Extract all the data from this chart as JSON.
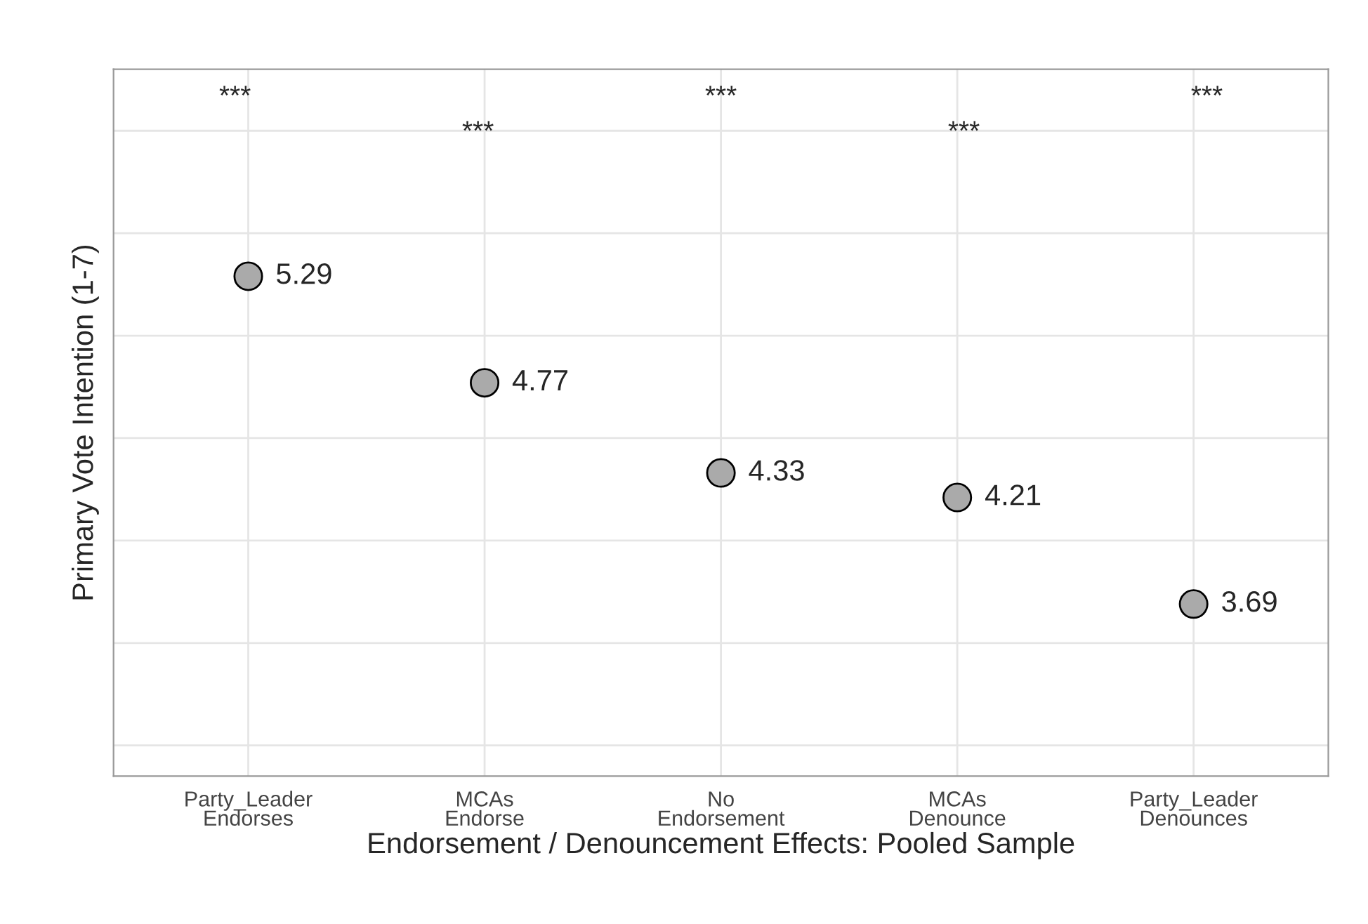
{
  "chart_data": {
    "type": "scatter",
    "xlabel": "Endorsement / Denouncement Effects: Pooled Sample",
    "ylabel": "Primary Vote Intention (1-7)",
    "categories": [
      "Party_Leader\nEndorses",
      "MCAs\nEndorse",
      "No\nEndorsement",
      "MCAs\nDenounce",
      "Party_Leader\nDenounces"
    ],
    "ylim": [
      2.85,
      6.3
    ],
    "yticks": [
      {
        "value": 3,
        "label": null
      },
      {
        "value": 3.5,
        "label": null
      },
      {
        "value": 4,
        "label": null
      },
      {
        "value": 4.5,
        "label": null
      },
      {
        "value": 5,
        "label": null
      },
      {
        "value": 5.5,
        "label": null
      },
      {
        "value": 6,
        "label": null
      }
    ],
    "tick_labels": "x",
    "series": [
      {
        "color": "#aaaaaa",
        "values": [
          5.29,
          4.77,
          4.33,
          4.21,
          3.69
        ]
      }
    ],
    "data_labels": true,
    "marker": "circle",
    "grid": true,
    "annotations": [
      "***",
      "***",
      "***",
      "***",
      "***"
    ]
  }
}
